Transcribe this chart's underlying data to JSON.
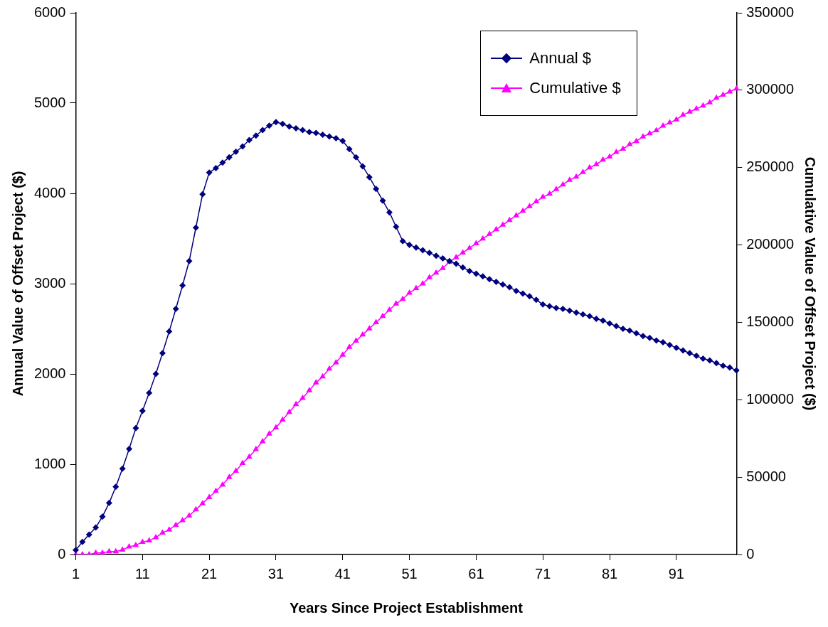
{
  "chart_data": {
    "type": "line",
    "xlabel": "Years Since Project Establishment",
    "ylabel": "Annual Value of Offset Project ($)",
    "y2label": "Cumulative Value of Offset Project ($)",
    "categories": [
      "1",
      null,
      null,
      null,
      null,
      null,
      null,
      null,
      null,
      null,
      "11",
      null,
      null,
      null,
      null,
      null,
      null,
      null,
      null,
      null,
      "21",
      null,
      null,
      null,
      null,
      null,
      null,
      null,
      null,
      null,
      "31",
      null,
      null,
      null,
      null,
      null,
      null,
      null,
      null,
      null,
      "41",
      null,
      null,
      null,
      null,
      null,
      null,
      null,
      null,
      null,
      "51",
      null,
      null,
      null,
      null,
      null,
      null,
      null,
      null,
      null,
      "61",
      null,
      null,
      null,
      null,
      null,
      null,
      null,
      null,
      null,
      "71",
      null,
      null,
      null,
      null,
      null,
      null,
      null,
      null,
      null,
      "81",
      null,
      null,
      null,
      null,
      null,
      null,
      null,
      null,
      null,
      "91",
      null,
      null,
      null,
      null,
      null,
      null,
      null,
      null,
      null
    ],
    "series": [
      {
        "name": "Annual $",
        "color": "#000080",
        "marker": "diamond",
        "values": [
          50,
          140,
          220,
          300,
          420,
          570,
          750,
          950,
          1170,
          1400,
          1590,
          1790,
          2000,
          2230,
          2470,
          2720,
          2980,
          3250,
          3620,
          3990,
          4230,
          4280,
          4340,
          4400,
          4460,
          4520,
          4590,
          4640,
          4700,
          4750,
          4790,
          4770,
          4740,
          4720,
          4700,
          4680,
          4670,
          4650,
          4630,
          4610,
          4580,
          4490,
          4400,
          4300,
          4180,
          4050,
          3920,
          3790,
          3630,
          3470,
          3430,
          3400,
          3370,
          3340,
          3310,
          3280,
          3250,
          3220,
          3180,
          3140,
          3110,
          3080,
          3050,
          3020,
          2990,
          2960,
          2920,
          2890,
          2860,
          2820,
          2770,
          2750,
          2730,
          2720,
          2700,
          2680,
          2660,
          2640,
          2610,
          2590,
          2560,
          2530,
          2500,
          2480,
          2450,
          2420,
          2400,
          2370,
          2350,
          2320,
          2290,
          2260,
          2230,
          2200,
          2170,
          2150,
          2120,
          2090,
          2070,
          2040
        ]
      },
      {
        "name": "Cumulative $",
        "color": "#ff00ff",
        "marker": "triangle",
        "axis": "y2",
        "values": [
          0,
          0,
          0,
          1000,
          1000,
          2000,
          2000,
          3000,
          5000,
          6000,
          8000,
          9000,
          11000,
          14000,
          16000,
          19000,
          22000,
          25000,
          29000,
          33000,
          37000,
          41000,
          45000,
          50000,
          54000,
          59000,
          63000,
          68000,
          73000,
          78000,
          82000,
          87000,
          92000,
          97000,
          101000,
          106000,
          111000,
          115000,
          120000,
          124000,
          129000,
          134000,
          138000,
          142000,
          146000,
          150000,
          154000,
          158000,
          162000,
          165000,
          169000,
          172000,
          175000,
          179000,
          182000,
          185000,
          189000,
          192000,
          195000,
          198000,
          201000,
          204000,
          207000,
          210000,
          213000,
          216000,
          219000,
          222000,
          225000,
          228000,
          231000,
          233000,
          236000,
          239000,
          242000,
          244000,
          247000,
          250000,
          252000,
          255000,
          257000,
          260000,
          262000,
          265000,
          267000,
          270000,
          272000,
          274000,
          277000,
          279000,
          281000,
          284000,
          286000,
          288000,
          290000,
          292000,
          295000,
          297000,
          299000,
          301000
        ]
      }
    ],
    "ylim": [
      0,
      6000
    ],
    "yticks": [
      0,
      1000,
      2000,
      3000,
      4000,
      5000,
      6000
    ],
    "y2lim": [
      0,
      350000
    ],
    "y2ticks": [
      0,
      50000,
      100000,
      150000,
      200000,
      250000,
      300000,
      350000
    ],
    "grid": false,
    "legend": "top right",
    "line_style": "solid"
  }
}
